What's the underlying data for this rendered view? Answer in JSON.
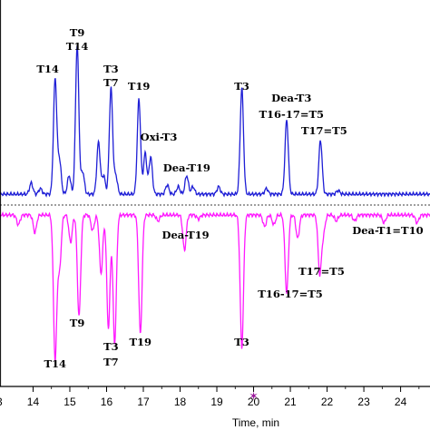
{
  "chart_data": {
    "type": "line",
    "xlabel": "Time, min",
    "xlim": [
      13.1,
      24.8
    ],
    "xticks": [
      14,
      15,
      16,
      17,
      18,
      19,
      20,
      21,
      22,
      23,
      24
    ],
    "xtick_labels": [
      "14",
      "15",
      "16",
      "17",
      "18",
      "19",
      "20",
      "21",
      "22",
      "23",
      "24"
    ],
    "colors": {
      "upper": "#1f1fd6",
      "lower": "#ff1aff",
      "axis": "#000000",
      "marker": "#9b1a9b"
    },
    "grid": false,
    "series": [
      {
        "baseline": 0.0,
        "direction": "up",
        "peaks": [
          {
            "x": 13.95,
            "h": 0.06
          },
          {
            "x": 14.2,
            "h": 0.03
          },
          {
            "x": 14.6,
            "h": 0.62
          },
          {
            "x": 14.72,
            "h": 0.18
          },
          {
            "x": 14.98,
            "h": 0.1
          },
          {
            "x": 15.2,
            "h": 0.8
          },
          {
            "x": 15.35,
            "h": 0.12
          },
          {
            "x": 15.78,
            "h": 0.28
          },
          {
            "x": 15.92,
            "h": 0.1
          },
          {
            "x": 16.12,
            "h": 0.57
          },
          {
            "x": 16.25,
            "h": 0.1
          },
          {
            "x": 16.88,
            "h": 0.51
          },
          {
            "x": 17.05,
            "h": 0.22
          },
          {
            "x": 17.2,
            "h": 0.2
          },
          {
            "x": 17.65,
            "h": 0.05
          },
          {
            "x": 17.95,
            "h": 0.04
          },
          {
            "x": 18.18,
            "h": 0.1
          },
          {
            "x": 18.35,
            "h": 0.04
          },
          {
            "x": 19.05,
            "h": 0.04
          },
          {
            "x": 19.68,
            "h": 0.57
          },
          {
            "x": 20.35,
            "h": 0.03
          },
          {
            "x": 20.9,
            "h": 0.4
          },
          {
            "x": 21.82,
            "h": 0.29
          },
          {
            "x": 22.3,
            "h": 0.02
          }
        ]
      },
      {
        "baseline": 0.0,
        "direction": "down",
        "peaks": [
          {
            "x": 13.6,
            "h": 0.05
          },
          {
            "x": 14.05,
            "h": 0.09
          },
          {
            "x": 14.6,
            "h": 0.74
          },
          {
            "x": 14.72,
            "h": 0.27
          },
          {
            "x": 15.02,
            "h": 0.14
          },
          {
            "x": 15.25,
            "h": 0.52
          },
          {
            "x": 15.62,
            "h": 0.08
          },
          {
            "x": 15.85,
            "h": 0.3
          },
          {
            "x": 16.05,
            "h": 0.58
          },
          {
            "x": 16.22,
            "h": 0.66
          },
          {
            "x": 16.92,
            "h": 0.61
          },
          {
            "x": 17.4,
            "h": 0.03
          },
          {
            "x": 18.12,
            "h": 0.18
          },
          {
            "x": 18.5,
            "h": 0.02
          },
          {
            "x": 19.68,
            "h": 0.68
          },
          {
            "x": 20.3,
            "h": 0.06
          },
          {
            "x": 20.55,
            "h": 0.05
          },
          {
            "x": 20.9,
            "h": 0.4
          },
          {
            "x": 21.2,
            "h": 0.12
          },
          {
            "x": 21.8,
            "h": 0.3
          },
          {
            "x": 21.9,
            "h": 0.09
          },
          {
            "x": 22.25,
            "h": 0.03
          },
          {
            "x": 22.75,
            "h": 0.03
          },
          {
            "x": 23.55,
            "h": 0.04
          },
          {
            "x": 24.45,
            "h": 0.04
          }
        ]
      }
    ],
    "annotations_upper": [
      {
        "text": "T9",
        "x": 15.2
      },
      {
        "text": "T14",
        "x": 15.2
      },
      {
        "text": "T14",
        "x": 14.4
      },
      {
        "text": "T3",
        "x": 16.12
      },
      {
        "text": "T7",
        "x": 16.12
      },
      {
        "text": "T19",
        "x": 16.88
      },
      {
        "text": "Oxi-T3",
        "x": 17.42
      },
      {
        "text": "Dea-T19",
        "x": 18.18
      },
      {
        "text": "T3",
        "x": 19.68
      },
      {
        "text": "Dea-T3",
        "x": 21.03
      },
      {
        "text": "T16-17=T5",
        "x": 21.03
      },
      {
        "text": "T17=T5",
        "x": 21.92
      }
    ],
    "annotations_lower": [
      {
        "text": "Dea-T1=T10",
        "x": 23.65
      },
      {
        "text": "Dea-T19",
        "x": 18.15
      },
      {
        "text": "T17=T5",
        "x": 21.85
      },
      {
        "text": "T16-17=T5",
        "x": 21.0
      },
      {
        "text": "T9",
        "x": 15.2
      },
      {
        "text": "T3",
        "x": 16.12
      },
      {
        "text": "T7",
        "x": 16.12
      },
      {
        "text": "T19",
        "x": 16.92
      },
      {
        "text": "T3",
        "x": 19.68
      },
      {
        "text": "T14",
        "x": 14.6
      }
    ],
    "marker_x": 20.0
  }
}
